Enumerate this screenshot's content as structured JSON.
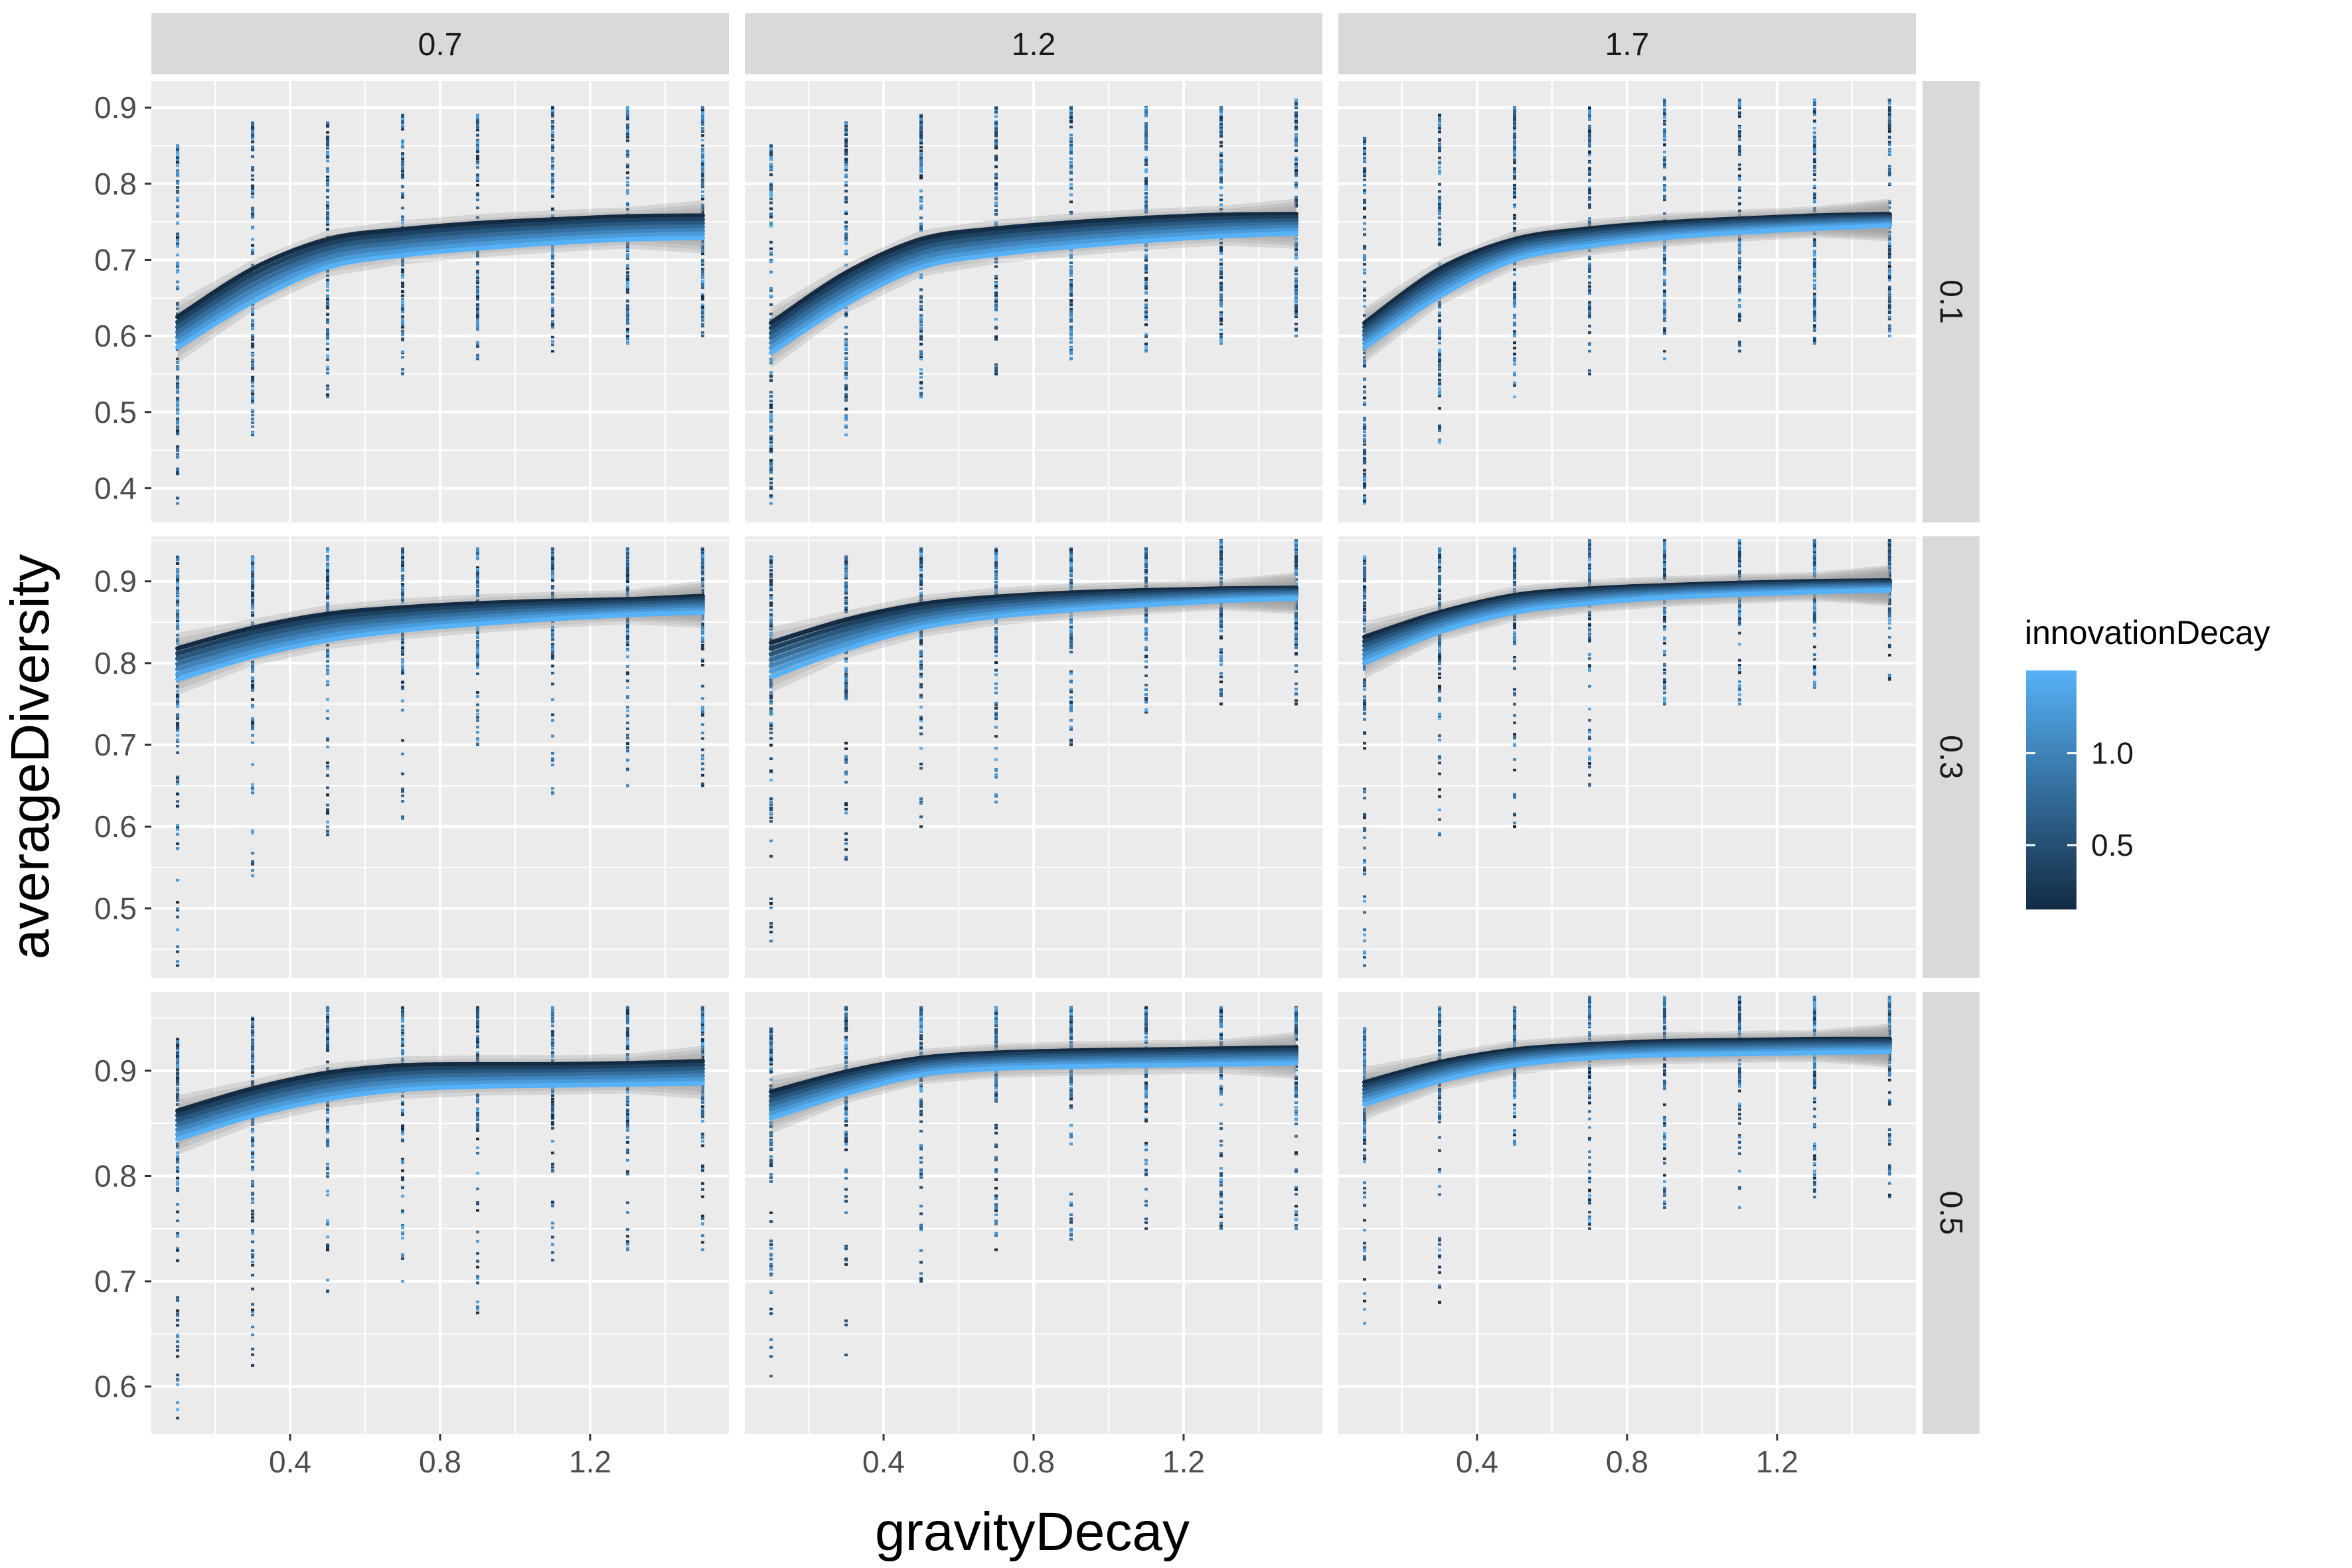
{
  "chart_data": {
    "type": "scatter",
    "xlabel": "gravityDecay",
    "ylabel": "averageDiversity",
    "legend": {
      "title": "innovationDecay",
      "ticks": [
        1.0,
        0.5
      ],
      "tick_labels": [
        "1.0",
        "0.5"
      ],
      "range": [
        0.15,
        1.45
      ],
      "position": "right",
      "low_color": "#132B43",
      "high_color": "#56B1F7"
    },
    "col_facets": [
      "0.7",
      "1.2",
      "1.7"
    ],
    "row_facets": [
      "0.1",
      "0.3",
      "0.5"
    ],
    "x_ticks": [
      0.4,
      0.8,
      1.2
    ],
    "x_tick_labels": [
      "0.4",
      "0.8",
      "1.2"
    ],
    "xlim": [
      0.03,
      1.57
    ],
    "x_values": [
      0.1,
      0.3,
      0.5,
      0.7,
      0.9,
      1.1,
      1.3,
      1.5
    ],
    "rows": [
      {
        "ylim": [
          0.355,
          0.935
        ],
        "y_ticks": [
          0.4,
          0.5,
          0.6,
          0.7,
          0.8,
          0.9
        ],
        "y_tick_labels": [
          "0.4",
          "0.5",
          "0.6",
          "0.7",
          "0.8",
          "0.9"
        ],
        "panels": [
          {
            "min": [
              0.38,
              0.47,
              0.52,
              0.55,
              0.57,
              0.58,
              0.59,
              0.6
            ],
            "max": [
              0.85,
              0.88,
              0.88,
              0.89,
              0.89,
              0.9,
              0.9,
              0.9
            ],
            "low_curve": [
              0.625,
              0.688,
              0.727,
              0.74,
              0.748,
              0.753,
              0.757,
              0.758
            ],
            "high_curve": [
              0.585,
              0.645,
              0.69,
              0.706,
              0.715,
              0.722,
              0.727,
              0.729
            ]
          },
          {
            "min": [
              0.38,
              0.47,
              0.52,
              0.55,
              0.57,
              0.58,
              0.59,
              0.6
            ],
            "max": [
              0.85,
              0.88,
              0.89,
              0.9,
              0.9,
              0.9,
              0.9,
              0.91
            ],
            "low_curve": [
              0.617,
              0.683,
              0.727,
              0.741,
              0.749,
              0.755,
              0.759,
              0.76
            ],
            "high_curve": [
              0.578,
              0.642,
              0.69,
              0.707,
              0.717,
              0.725,
              0.731,
              0.735
            ]
          },
          {
            "min": [
              0.38,
              0.46,
              0.52,
              0.55,
              0.57,
              0.58,
              0.59,
              0.6
            ],
            "max": [
              0.86,
              0.89,
              0.9,
              0.9,
              0.91,
              0.91,
              0.91,
              0.91
            ],
            "low_curve": [
              0.617,
              0.688,
              0.727,
              0.741,
              0.749,
              0.754,
              0.758,
              0.76
            ],
            "high_curve": [
              0.585,
              0.652,
              0.7,
              0.718,
              0.729,
              0.736,
              0.741,
              0.745
            ]
          }
        ]
      },
      {
        "ylim": [
          0.415,
          0.955
        ],
        "y_ticks": [
          0.5,
          0.6,
          0.7,
          0.8,
          0.9
        ],
        "y_tick_labels": [
          "0.5",
          "0.6",
          "0.7",
          "0.8",
          "0.9"
        ],
        "panels": [
          {
            "min": [
              0.43,
              0.54,
              0.59,
              0.61,
              0.7,
              0.64,
              0.65,
              0.65
            ],
            "max": [
              0.93,
              0.93,
              0.94,
              0.94,
              0.94,
              0.94,
              0.94,
              0.94
            ],
            "low_curve": [
              0.818,
              0.843,
              0.86,
              0.868,
              0.873,
              0.876,
              0.878,
              0.882
            ],
            "high_curve": [
              0.78,
              0.808,
              0.828,
              0.84,
              0.848,
              0.854,
              0.859,
              0.862
            ]
          },
          {
            "min": [
              0.46,
              0.56,
              0.6,
              0.63,
              0.7,
              0.74,
              0.75,
              0.75
            ],
            "max": [
              0.93,
              0.93,
              0.94,
              0.94,
              0.94,
              0.94,
              0.95,
              0.95
            ],
            "low_curve": [
              0.825,
              0.853,
              0.872,
              0.881,
              0.886,
              0.889,
              0.891,
              0.892
            ],
            "high_curve": [
              0.783,
              0.817,
              0.843,
              0.857,
              0.865,
              0.871,
              0.876,
              0.879
            ]
          },
          {
            "min": [
              0.43,
              0.59,
              0.6,
              0.65,
              0.75,
              0.75,
              0.77,
              0.78
            ],
            "max": [
              0.93,
              0.94,
              0.94,
              0.95,
              0.95,
              0.95,
              0.95,
              0.95
            ],
            "low_curve": [
              0.832,
              0.862,
              0.883,
              0.891,
              0.895,
              0.898,
              0.9,
              0.901
            ],
            "high_curve": [
              0.8,
              0.838,
              0.862,
              0.873,
              0.88,
              0.884,
              0.887,
              0.889
            ]
          }
        ]
      },
      {
        "ylim": [
          0.555,
          0.975
        ],
        "y_ticks": [
          0.6,
          0.7,
          0.8,
          0.9
        ],
        "y_tick_labels": [
          "0.6",
          "0.7",
          "0.8",
          "0.9"
        ],
        "panels": [
          {
            "min": [
              0.57,
              0.62,
              0.69,
              0.7,
              0.67,
              0.72,
              0.73,
              0.73
            ],
            "max": [
              0.93,
              0.95,
              0.96,
              0.96,
              0.96,
              0.96,
              0.96,
              0.96
            ],
            "low_curve": [
              0.862,
              0.883,
              0.898,
              0.905,
              0.906,
              0.906,
              0.907,
              0.909
            ],
            "high_curve": [
              0.835,
              0.857,
              0.873,
              0.882,
              0.885,
              0.886,
              0.887,
              0.888
            ]
          },
          {
            "min": [
              0.61,
              0.63,
              0.7,
              0.73,
              0.74,
              0.75,
              0.75,
              0.75
            ],
            "max": [
              0.94,
              0.96,
              0.96,
              0.96,
              0.96,
              0.96,
              0.96,
              0.96
            ],
            "low_curve": [
              0.88,
              0.899,
              0.912,
              0.917,
              0.919,
              0.92,
              0.921,
              0.922
            ],
            "high_curve": [
              0.855,
              0.878,
              0.896,
              0.902,
              0.904,
              0.905,
              0.906,
              0.907
            ]
          },
          {
            "min": [
              0.66,
              0.68,
              0.83,
              0.75,
              0.77,
              0.77,
              0.78,
              0.78
            ],
            "max": [
              0.94,
              0.96,
              0.96,
              0.97,
              0.97,
              0.97,
              0.97,
              0.97
            ],
            "low_curve": [
              0.889,
              0.908,
              0.92,
              0.925,
              0.928,
              0.929,
              0.93,
              0.93
            ],
            "high_curve": [
              0.868,
              0.89,
              0.905,
              0.912,
              0.915,
              0.916,
              0.917,
              0.918
            ]
          }
        ]
      }
    ]
  }
}
